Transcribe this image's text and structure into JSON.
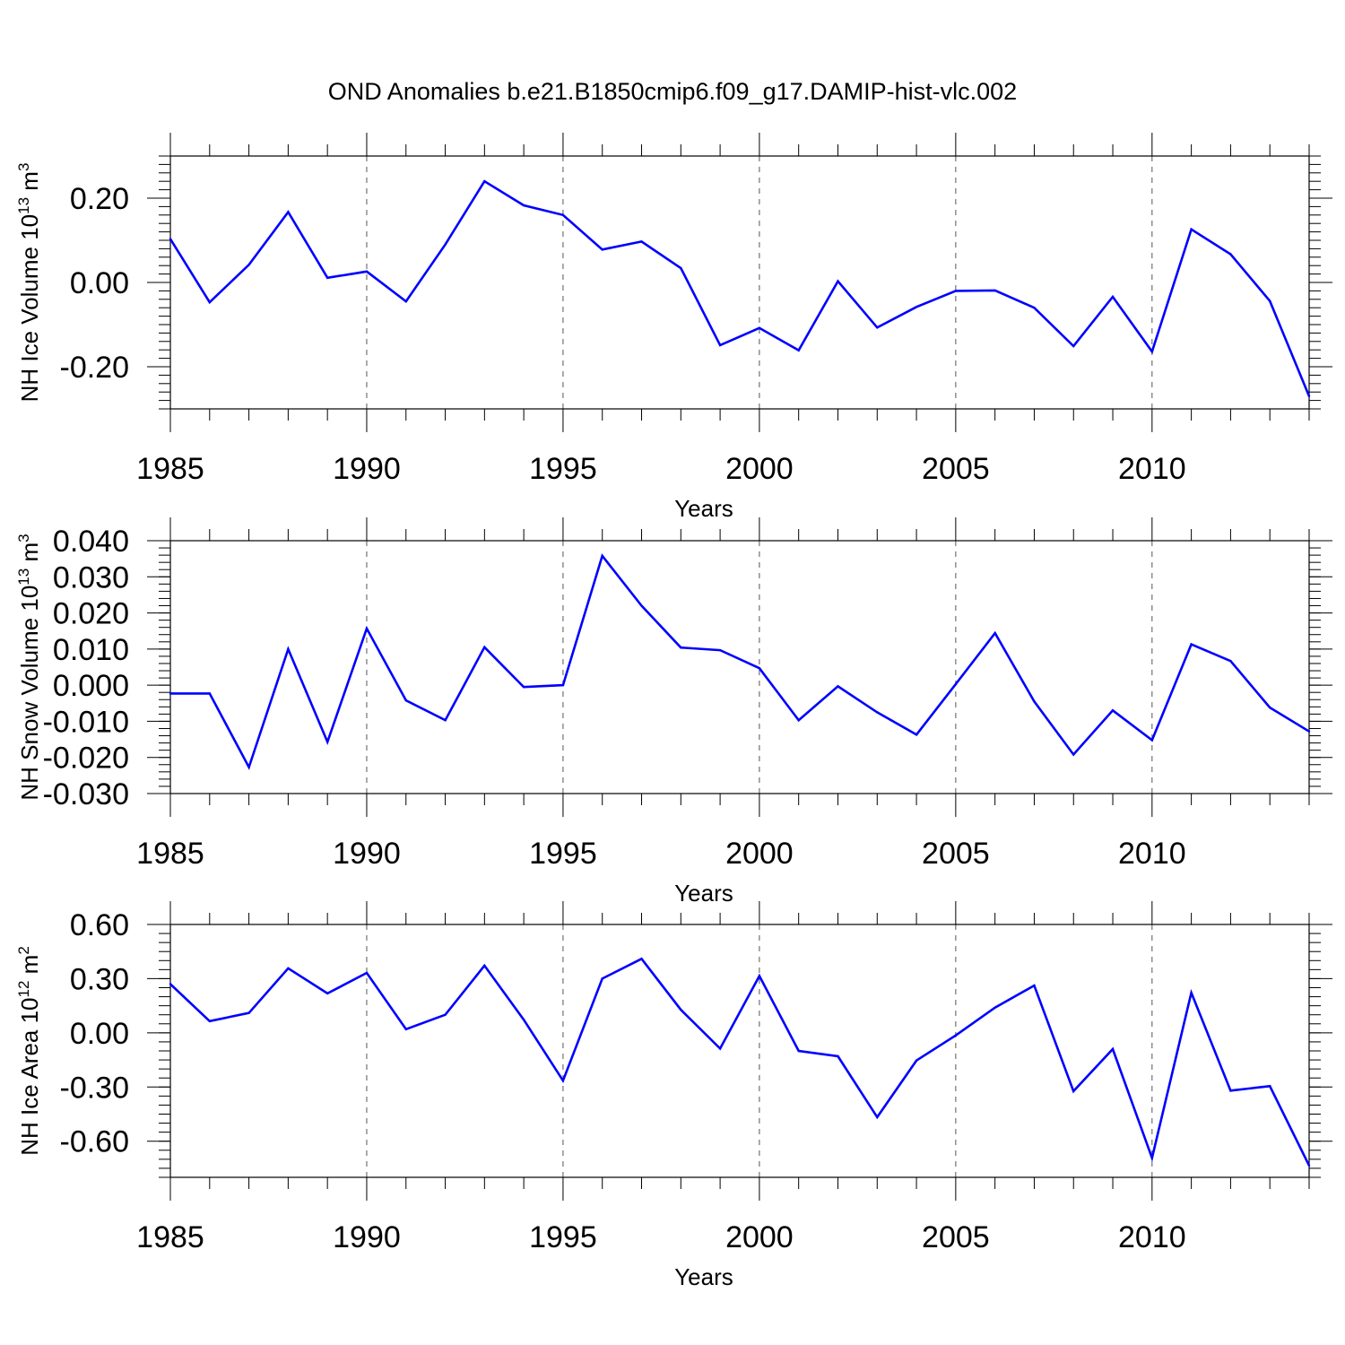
{
  "title": "OND Anomalies b.e21.B1850cmip6.f09_g17.DAMIP-hist-vlc.002",
  "colors": {
    "line": "#0000ff",
    "axis": "#000000",
    "grid": "#555555"
  },
  "chart_data": [
    {
      "type": "line",
      "xlabel": "Years",
      "ylabel": {
        "main": "NH Ice Volume 10",
        "sup1": "13",
        "mid": " m",
        "sup2": "3"
      },
      "xlim": [
        1985,
        2014
      ],
      "ylim": [
        -0.3,
        0.3
      ],
      "xticks": [
        1985,
        1990,
        1995,
        2000,
        2005,
        2010
      ],
      "xtick_labels": [
        "1985",
        "1990",
        "1995",
        "2000",
        "2005",
        "2010"
      ],
      "yticks": [
        -0.2,
        0.0,
        0.2
      ],
      "ytick_labels": [
        "-0.20",
        "0.00",
        "0.20"
      ],
      "vertical_grid": "dashed at major x ticks",
      "x": [
        1985,
        1986,
        1987,
        1988,
        1989,
        1990,
        1991,
        1992,
        1993,
        1994,
        1995,
        1996,
        1997,
        1998,
        1999,
        2000,
        2001,
        2002,
        2003,
        2004,
        2005,
        2006,
        2007,
        2008,
        2009,
        2010,
        2011,
        2012,
        2013,
        2014
      ],
      "values": [
        0.103,
        -0.047,
        0.042,
        0.167,
        0.011,
        0.026,
        -0.045,
        0.09,
        0.24,
        0.183,
        0.16,
        0.078,
        0.097,
        0.034,
        -0.149,
        -0.108,
        -0.161,
        0.003,
        -0.107,
        -0.058,
        -0.02,
        -0.019,
        -0.06,
        -0.151,
        -0.034,
        -0.164,
        0.126,
        0.067,
        -0.044,
        -0.27
      ]
    },
    {
      "type": "line",
      "xlabel": "Years",
      "ylabel": {
        "main": "NH Snow Volume 10",
        "sup1": "13",
        "mid": " m",
        "sup2": "3"
      },
      "xlim": [
        1985,
        2014
      ],
      "ylim": [
        -0.03,
        0.04
      ],
      "xticks": [
        1985,
        1990,
        1995,
        2000,
        2005,
        2010
      ],
      "xtick_labels": [
        "1985",
        "1990",
        "1995",
        "2000",
        "2005",
        "2010"
      ],
      "yticks": [
        -0.03,
        -0.02,
        -0.01,
        0.0,
        0.01,
        0.02,
        0.03,
        0.04
      ],
      "ytick_labels": [
        "-0.030",
        "-0.020",
        "-0.010",
        "0.000",
        "0.010",
        "0.020",
        "0.030",
        "0.040"
      ],
      "vertical_grid": "dashed at major x ticks",
      "x": [
        1985,
        1986,
        1987,
        1988,
        1989,
        1990,
        1991,
        1992,
        1993,
        1994,
        1995,
        1996,
        1997,
        1998,
        1999,
        2000,
        2001,
        2002,
        2003,
        2004,
        2005,
        2006,
        2007,
        2008,
        2009,
        2010,
        2011,
        2012,
        2013,
        2014
      ],
      "values": [
        -0.0023,
        -0.0023,
        -0.0227,
        0.01,
        -0.0157,
        0.0157,
        -0.0042,
        -0.0097,
        0.0105,
        -0.0005,
        0.0,
        0.0358,
        0.022,
        0.0104,
        0.0097,
        0.0047,
        -0.0097,
        -0.0003,
        -0.0075,
        -0.0137,
        0.0003,
        0.0144,
        -0.0045,
        -0.0192,
        -0.007,
        -0.0152,
        0.0113,
        0.0067,
        -0.0062,
        -0.0128
      ]
    },
    {
      "type": "line",
      "xlabel": "Years",
      "ylabel": {
        "main": "NH Ice Area 10",
        "sup1": "12",
        "mid": " m",
        "sup2": "2"
      },
      "xlim": [
        1985,
        2014
      ],
      "ylim": [
        -0.8,
        0.6
      ],
      "xticks": [
        1985,
        1990,
        1995,
        2000,
        2005,
        2010
      ],
      "xtick_labels": [
        "1985",
        "1990",
        "1995",
        "2000",
        "2005",
        "2010"
      ],
      "yticks": [
        -0.6,
        -0.3,
        0.0,
        0.3,
        0.6
      ],
      "ytick_labels": [
        "-0.60",
        "-0.30",
        "0.00",
        "0.30",
        "0.60"
      ],
      "vertical_grid": "dashed at major x ticks",
      "x": [
        1985,
        1986,
        1987,
        1988,
        1989,
        1990,
        1991,
        1992,
        1993,
        1994,
        1995,
        1996,
        1997,
        1998,
        1999,
        2000,
        2001,
        2002,
        2003,
        2004,
        2005,
        2006,
        2007,
        2008,
        2009,
        2010,
        2011,
        2012,
        2013,
        2014
      ],
      "values": [
        0.27,
        0.065,
        0.11,
        0.357,
        0.218,
        0.332,
        0.02,
        0.1,
        0.372,
        0.073,
        -0.265,
        0.3,
        0.41,
        0.128,
        -0.087,
        0.315,
        -0.1,
        -0.13,
        -0.467,
        -0.153,
        -0.014,
        0.14,
        0.262,
        -0.323,
        -0.09,
        -0.693,
        0.222,
        -0.32,
        -0.295,
        -0.735
      ]
    }
  ]
}
